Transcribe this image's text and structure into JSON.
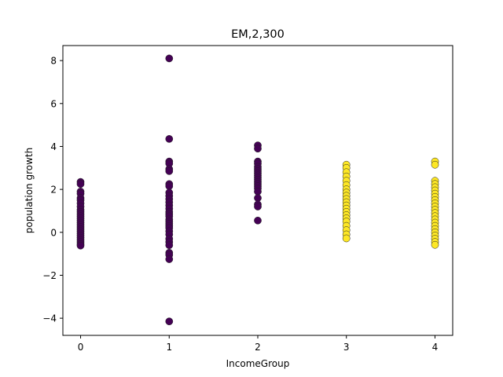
{
  "chart_data": {
    "type": "scatter",
    "title": "EM,2,300",
    "xlabel": "IncomeGroup",
    "ylabel": "population growth",
    "xlim": [
      -0.2,
      4.2
    ],
    "ylim": [
      -4.8,
      8.7
    ],
    "xticks": [
      0,
      1,
      2,
      3,
      4
    ],
    "yticks": [
      -4,
      -2,
      0,
      2,
      4,
      6,
      8
    ],
    "grid": false,
    "colors": {
      "cluster_0": "#440154",
      "cluster_1": "#fde725",
      "edge": "#222222"
    },
    "series": [
      {
        "cluster": 0,
        "points": [
          [
            0,
            2.35
          ],
          [
            0,
            2.25
          ],
          [
            0,
            1.9
          ],
          [
            0,
            1.8
          ],
          [
            0,
            1.6
          ],
          [
            0,
            1.5
          ],
          [
            0,
            1.35
          ],
          [
            0,
            1.2
          ],
          [
            0,
            1.05
          ],
          [
            0,
            0.95
          ],
          [
            0,
            0.85
          ],
          [
            0,
            0.75
          ],
          [
            0,
            0.65
          ],
          [
            0,
            0.55
          ],
          [
            0,
            0.45
          ],
          [
            0,
            0.35
          ],
          [
            0,
            0.25
          ],
          [
            0,
            0.15
          ],
          [
            0,
            0.05
          ],
          [
            0,
            -0.05
          ],
          [
            0,
            -0.15
          ],
          [
            0,
            -0.25
          ],
          [
            0,
            -0.35
          ],
          [
            0,
            -0.45
          ],
          [
            0,
            -0.55
          ],
          [
            0,
            -0.62
          ],
          [
            1,
            8.1
          ],
          [
            1,
            4.35
          ],
          [
            1,
            3.3
          ],
          [
            1,
            3.2
          ],
          [
            1,
            2.95
          ],
          [
            1,
            2.85
          ],
          [
            1,
            2.25
          ],
          [
            1,
            2.15
          ],
          [
            1,
            1.85
          ],
          [
            1,
            1.7
          ],
          [
            1,
            1.55
          ],
          [
            1,
            1.4
          ],
          [
            1,
            1.25
          ],
          [
            1,
            1.1
          ],
          [
            1,
            0.95
          ],
          [
            1,
            0.85
          ],
          [
            1,
            0.75
          ],
          [
            1,
            0.6
          ],
          [
            1,
            0.5
          ],
          [
            1,
            0.4
          ],
          [
            1,
            0.3
          ],
          [
            1,
            0.2
          ],
          [
            1,
            0.05
          ],
          [
            1,
            -0.1
          ],
          [
            1,
            -0.3
          ],
          [
            1,
            -0.45
          ],
          [
            1,
            -0.6
          ],
          [
            1,
            -0.95
          ],
          [
            1,
            -1.05
          ],
          [
            1,
            -1.25
          ],
          [
            1,
            -4.15
          ],
          [
            2,
            4.05
          ],
          [
            2,
            3.9
          ],
          [
            2,
            3.3
          ],
          [
            2,
            3.2
          ],
          [
            2,
            3.05
          ],
          [
            2,
            2.95
          ],
          [
            2,
            2.85
          ],
          [
            2,
            2.75
          ],
          [
            2,
            2.65
          ],
          [
            2,
            2.55
          ],
          [
            2,
            2.45
          ],
          [
            2,
            2.35
          ],
          [
            2,
            2.25
          ],
          [
            2,
            2.15
          ],
          [
            2,
            2.05
          ],
          [
            2,
            1.9
          ],
          [
            2,
            1.6
          ],
          [
            2,
            1.3
          ],
          [
            2,
            1.2
          ],
          [
            2,
            0.55
          ]
        ]
      },
      {
        "cluster": 1,
        "points": [
          [
            3,
            3.15
          ],
          [
            3,
            3.0
          ],
          [
            3,
            2.8
          ],
          [
            3,
            2.6
          ],
          [
            3,
            2.4
          ],
          [
            3,
            2.2
          ],
          [
            3,
            2.0
          ],
          [
            3,
            1.85
          ],
          [
            3,
            1.7
          ],
          [
            3,
            1.55
          ],
          [
            3,
            1.4
          ],
          [
            3,
            1.25
          ],
          [
            3,
            1.1
          ],
          [
            3,
            0.95
          ],
          [
            3,
            0.8
          ],
          [
            3,
            0.65
          ],
          [
            3,
            0.5
          ],
          [
            3,
            0.3
          ],
          [
            3,
            0.1
          ],
          [
            3,
            -0.1
          ],
          [
            3,
            -0.28
          ],
          [
            4,
            3.3
          ],
          [
            4,
            3.15
          ],
          [
            4,
            2.4
          ],
          [
            4,
            2.25
          ],
          [
            4,
            2.1
          ],
          [
            4,
            1.95
          ],
          [
            4,
            1.8
          ],
          [
            4,
            1.65
          ],
          [
            4,
            1.5
          ],
          [
            4,
            1.35
          ],
          [
            4,
            1.2
          ],
          [
            4,
            1.05
          ],
          [
            4,
            0.9
          ],
          [
            4,
            0.75
          ],
          [
            4,
            0.6
          ],
          [
            4,
            0.45
          ],
          [
            4,
            0.3
          ],
          [
            4,
            0.15
          ],
          [
            4,
            0.0
          ],
          [
            4,
            -0.15
          ],
          [
            4,
            -0.3
          ],
          [
            4,
            -0.45
          ],
          [
            4,
            -0.58
          ]
        ]
      }
    ]
  }
}
